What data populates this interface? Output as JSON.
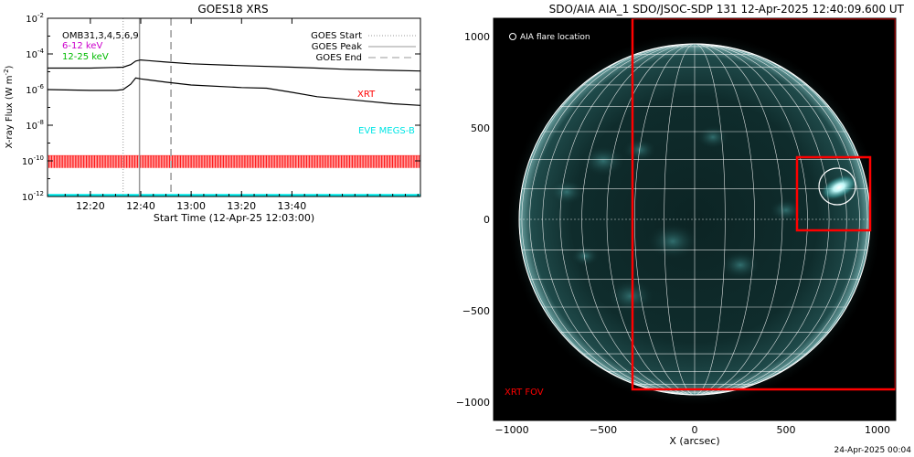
{
  "chart_data": [
    {
      "type": "line",
      "title": "GOES18 XRS",
      "xlabel": "Start Time (12-Apr-25 12:03:00)",
      "ylabel": "X-ray Flux (W m",
      "ylabel_sup": "-2",
      "ylabel_close": ")",
      "yscale": "log",
      "ylim": [
        1e-12,
        0.01
      ],
      "xlim_minutes_after_1200": [
        3,
        151
      ],
      "x_ticks": [
        {
          "label": "12:20",
          "minute": 20
        },
        {
          "label": "12:40",
          "minute": 40
        },
        {
          "label": "13:00",
          "minute": 60
        },
        {
          "label": "13:20",
          "minute": 80
        },
        {
          "label": "13:40",
          "minute": 100
        }
      ],
      "y_ticks": [
        {
          "base": "10",
          "exp": "-2",
          "value": 0.01
        },
        {
          "base": "10",
          "exp": "-4",
          "value": 0.0001
        },
        {
          "base": "10",
          "exp": "-6",
          "value": 1e-06
        },
        {
          "base": "10",
          "exp": "-8",
          "value": 1e-08
        },
        {
          "base": "10",
          "exp": "-10",
          "value": 1e-10
        },
        {
          "base": "10",
          "exp": "-12",
          "value": 1e-12
        }
      ],
      "legend_left": [
        {
          "label": "OMB31,3,4,5,6,9",
          "color": "#000000"
        },
        {
          "label": "6-12 keV",
          "color": "#cc00cc"
        },
        {
          "label": "12-25 keV",
          "color": "#00cc00"
        }
      ],
      "legend_right": [
        {
          "label": "GOES Start",
          "style": "dotted",
          "color": "#999999"
        },
        {
          "label": "GOES Peak",
          "style": "solid",
          "color": "#999999"
        },
        {
          "label": "GOES End",
          "style": "dashed",
          "color": "#999999"
        }
      ],
      "event_lines": {
        "start_minute": 33,
        "peak_minute": 39.5,
        "end_minute": 52
      },
      "annotations": [
        {
          "text": "XRT",
          "color": "#ff0000"
        },
        {
          "text": "EVE MEGS-B",
          "color": "#00e5e5"
        }
      ],
      "series": [
        {
          "name": "GOES long",
          "color": "#000000",
          "x": [
            3,
            20,
            33,
            36,
            38,
            40,
            43,
            50,
            60,
            80,
            100,
            110,
            120,
            140,
            151
          ],
          "y": [
            1.6e-05,
            1.6e-05,
            1.8e-05,
            2.5e-05,
            4e-05,
            4.6e-05,
            4.2e-05,
            3.5e-05,
            2.8e-05,
            2.2e-05,
            1.8e-05,
            1.6e-05,
            1.4e-05,
            1.2e-05,
            1.1e-05
          ]
        },
        {
          "name": "GOES short",
          "color": "#000000",
          "x": [
            3,
            20,
            30,
            33,
            36,
            38,
            40,
            43,
            50,
            60,
            80,
            90,
            100,
            110,
            120,
            140,
            151
          ],
          "y": [
            1e-06,
            9e-07,
            9e-07,
            1e-06,
            2e-06,
            4.5e-06,
            4e-06,
            3.5e-06,
            2.6e-06,
            1.8e-06,
            1.3e-06,
            1.2e-06,
            7e-07,
            4e-07,
            3e-07,
            1.6e-07,
            1.3e-07
          ]
        }
      ],
      "xrt_band": {
        "low": 4e-11,
        "high": 2e-10,
        "color": "#ff0000",
        "x_start": 3,
        "x_end": 151
      },
      "eve_line": {
        "value": 1e-12,
        "color": "#00e5e5"
      }
    },
    {
      "type": "image",
      "title": "SDO/AIA AIA_1 SDO/JSOC-SDP 131 12-Apr-2025 12:40:09.600 UT",
      "xlabel": "X (arcsec)",
      "xlim": [
        -1100,
        1100
      ],
      "ylim": [
        -1100,
        1100
      ],
      "x_ticks": [
        "−1000",
        "−500",
        "0",
        "500",
        "1000"
      ],
      "x_tick_values": [
        -1000,
        -500,
        0,
        500,
        1000
      ],
      "y_ticks": [
        "1000",
        "500",
        "0",
        "−500",
        "−1000"
      ],
      "y_tick_values": [
        1000,
        500,
        0,
        -500,
        -1000
      ],
      "legend_text": "AIA flare location",
      "fov_label": "XRT FOV",
      "fov_color": "#ff0000",
      "disk_radius_arcsec": 960,
      "xrt_fov": {
        "x": [
          -340,
          1100
        ],
        "y": [
          -930,
          1100
        ]
      },
      "inner_box": {
        "x": [
          560,
          960
        ],
        "y": [
          -60,
          340
        ]
      },
      "flare": {
        "x": 780,
        "y": 180,
        "radius": 100
      }
    }
  ],
  "footer_timestamp": "24-Apr-2025 00:04"
}
